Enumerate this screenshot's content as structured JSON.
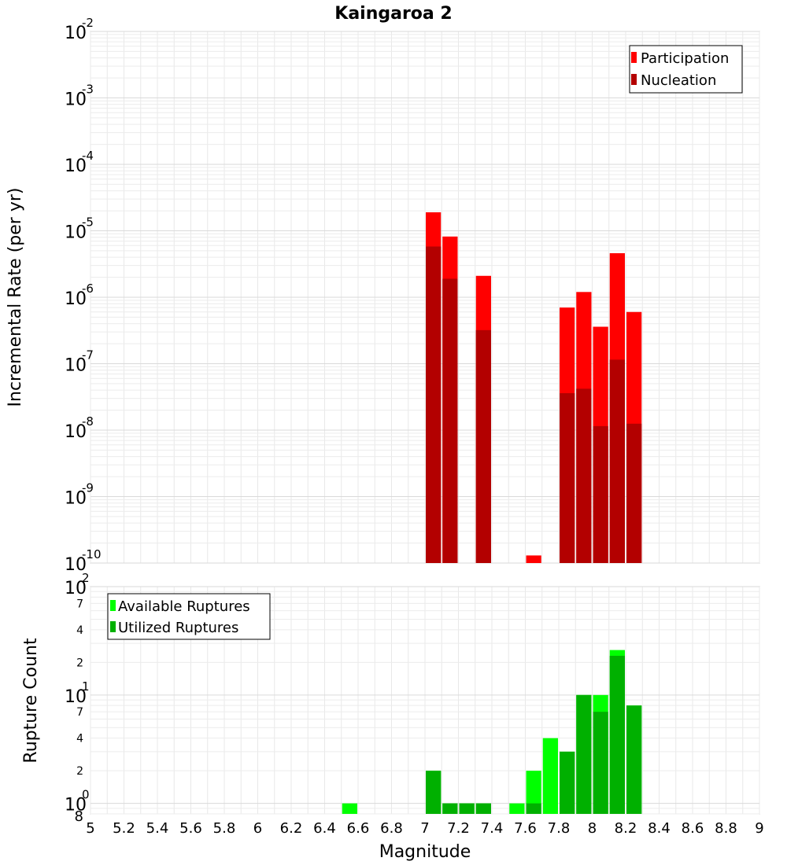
{
  "chart_data": [
    {
      "type": "bar",
      "title": "Kaingaroa 2",
      "ylabel": "Incremental Rate (per yr)",
      "yscale": "log",
      "ylim": [
        1e-10,
        0.01
      ],
      "y_tick_decades": [
        {
          "base": "10",
          "exp": "-10"
        },
        {
          "base": "10",
          "exp": "-9"
        },
        {
          "base": "10",
          "exp": "-8"
        },
        {
          "base": "10",
          "exp": "-7"
        },
        {
          "base": "10",
          "exp": "-6"
        },
        {
          "base": "10",
          "exp": "-5"
        },
        {
          "base": "10",
          "exp": "-4"
        },
        {
          "base": "10",
          "exp": "-3"
        },
        {
          "base": "10",
          "exp": "-2"
        }
      ],
      "legend": {
        "position": "top-right"
      },
      "series": [
        {
          "name": "Participation",
          "color": "#ff0000",
          "points": [
            {
              "x": 7.05,
              "y": 1.9e-05
            },
            {
              "x": 7.15,
              "y": 8.2e-06
            },
            {
              "x": 7.35,
              "y": 2.1e-06
            },
            {
              "x": 7.65,
              "y": 1.3e-10
            },
            {
              "x": 7.85,
              "y": 7e-07
            },
            {
              "x": 7.95,
              "y": 1.2e-06
            },
            {
              "x": 8.05,
              "y": 3.6e-07
            },
            {
              "x": 8.15,
              "y": 4.6e-06
            },
            {
              "x": 8.25,
              "y": 6e-07
            }
          ]
        },
        {
          "name": "Nucleation",
          "color": "#b30000",
          "points": [
            {
              "x": 7.05,
              "y": 5.8e-06
            },
            {
              "x": 7.15,
              "y": 1.9e-06
            },
            {
              "x": 7.35,
              "y": 3.2e-07
            },
            {
              "x": 7.85,
              "y": 3.6e-08
            },
            {
              "x": 7.95,
              "y": 4.2e-08
            },
            {
              "x": 8.05,
              "y": 1.15e-08
            },
            {
              "x": 8.15,
              "y": 1.15e-07
            },
            {
              "x": 8.25,
              "y": 1.25e-08
            }
          ]
        }
      ]
    },
    {
      "type": "bar",
      "xlabel": "Magnitude",
      "ylabel": "Rupture Count",
      "yscale": "log",
      "ylim": [
        0.8,
        100
      ],
      "xlim": [
        5,
        9
      ],
      "x_ticks": [
        "5",
        "5.2",
        "5.4",
        "5.6",
        "5.8",
        "6",
        "6.2",
        "6.4",
        "6.6",
        "6.8",
        "7",
        "7.2",
        "7.4",
        "7.6",
        "7.8",
        "8",
        "8.2",
        "8.4",
        "8.6",
        "8.8",
        "9"
      ],
      "y_tick_decades": [
        {
          "base": "10",
          "exp": "0"
        },
        {
          "base": "10",
          "exp": "1"
        },
        {
          "base": "10",
          "exp": "2"
        }
      ],
      "y_minor_labels": [
        {
          "value": 2,
          "label": "2"
        },
        {
          "value": 4,
          "label": "4"
        },
        {
          "value": 7,
          "label": "7"
        },
        {
          "value": 20,
          "label": "2"
        },
        {
          "value": 40,
          "label": "4"
        },
        {
          "value": 70,
          "label": "7"
        }
      ],
      "y_low_label": {
        "value": 0.8,
        "label": "8"
      },
      "legend": {
        "position": "top-left"
      },
      "series": [
        {
          "name": "Available Ruptures",
          "color": "#00ff00",
          "points": [
            {
              "x": 6.55,
              "y": 1
            },
            {
              "x": 7.05,
              "y": 2
            },
            {
              "x": 7.15,
              "y": 1
            },
            {
              "x": 7.25,
              "y": 1
            },
            {
              "x": 7.35,
              "y": 1
            },
            {
              "x": 7.55,
              "y": 1
            },
            {
              "x": 7.65,
              "y": 2
            },
            {
              "x": 7.75,
              "y": 4
            },
            {
              "x": 7.85,
              "y": 3
            },
            {
              "x": 7.95,
              "y": 10
            },
            {
              "x": 8.05,
              "y": 10
            },
            {
              "x": 8.15,
              "y": 26
            },
            {
              "x": 8.25,
              "y": 8
            }
          ]
        },
        {
          "name": "Utilized Ruptures",
          "color": "#00b000",
          "points": [
            {
              "x": 7.05,
              "y": 2
            },
            {
              "x": 7.15,
              "y": 1
            },
            {
              "x": 7.25,
              "y": 1
            },
            {
              "x": 7.35,
              "y": 1
            },
            {
              "x": 7.65,
              "y": 1
            },
            {
              "x": 7.85,
              "y": 3
            },
            {
              "x": 7.95,
              "y": 10
            },
            {
              "x": 8.05,
              "y": 7
            },
            {
              "x": 8.15,
              "y": 23
            },
            {
              "x": 8.25,
              "y": 8
            }
          ]
        }
      ]
    }
  ]
}
